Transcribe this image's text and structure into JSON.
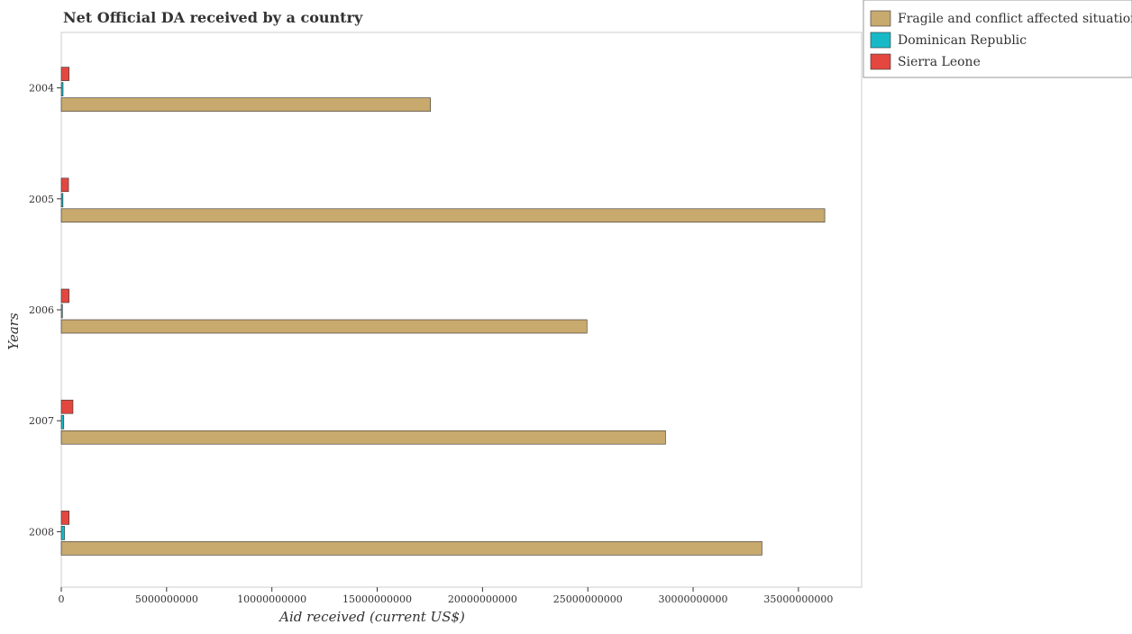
{
  "chart_data": {
    "type": "bar",
    "orientation": "horizontal",
    "title": "Net Official DA received by a country",
    "xlabel": "Aid received (current US$)",
    "ylabel": "Years",
    "categories": [
      "2004",
      "2005",
      "2006",
      "2007",
      "2008"
    ],
    "xlim": [
      0,
      38000000000
    ],
    "xticks": [
      0,
      5000000000,
      10000000000,
      15000000000,
      20000000000,
      25000000000,
      30000000000,
      35000000000
    ],
    "xtick_labels": [
      "0",
      "5000000000",
      "10000000000",
      "15000000000",
      "20000000000",
      "25000000000",
      "30000000000",
      "35000000000"
    ],
    "grid": false,
    "legend_position": "top-right-outside",
    "series": [
      {
        "name": "Fragile and conflict affected situations",
        "color": "#c8a96e",
        "values": [
          17530000000,
          36250000000,
          24960000000,
          28690000000,
          33270000000
        ]
      },
      {
        "name": "Dominican Republic",
        "color": "#18b9c6",
        "values": [
          85000000,
          80000000,
          55000000,
          120000000,
          155000000
        ]
      },
      {
        "name": "Sierra Leone",
        "color": "#e4473f",
        "values": [
          370000000,
          345000000,
          370000000,
          555000000,
          372000000
        ]
      }
    ]
  }
}
